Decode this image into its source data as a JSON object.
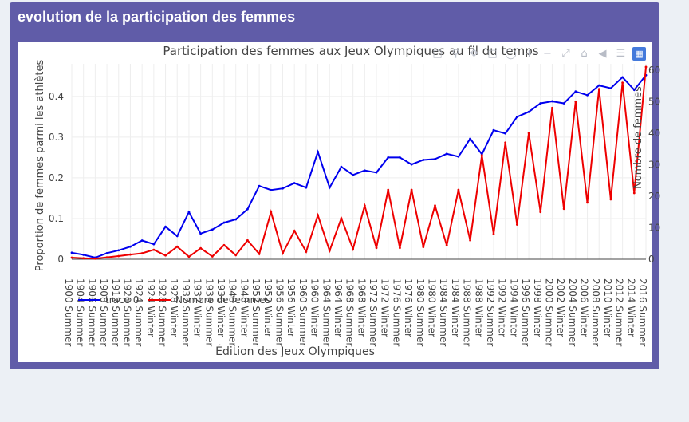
{
  "box": {
    "title": "evolution de la participation des femmes"
  },
  "modebar": {
    "icons": [
      "camera-icon",
      "zoom-icon",
      "pan-icon",
      "box-select-icon",
      "lasso-icon",
      "zoom-in-icon",
      "zoom-out-icon",
      "autoscale-icon",
      "reset-axes-icon",
      "hover-closest-icon",
      "hover-compare-icon",
      "plotly-logo-icon"
    ]
  },
  "chart_data": {
    "type": "line",
    "title": "Participation des femmes aux Jeux Olympiques au fil du temps",
    "xlabel": "Édition des Jeux Olympiques",
    "ylabel": "Proportion de femmes parmi les athlètes",
    "y2label": "Nombre de femmes",
    "legend_position": "bottom-left",
    "categories": [
      "1900 Summer",
      "1904 Summer",
      "1906 Summer",
      "1908 Summer",
      "1912 Summer",
      "1920 Summer",
      "1924 Summer",
      "1924 Winter",
      "1928 Summer",
      "1928 Winter",
      "1932 Summer",
      "1932 Winter",
      "1936 Summer",
      "1936 Winter",
      "1948 Summer",
      "1948 Winter",
      "1952 Summer",
      "1952 Winter",
      "1956 Summer",
      "1956 Winter",
      "1960 Summer",
      "1960 Winter",
      "1964 Summer",
      "1964 Winter",
      "1968 Summer",
      "1968 Winter",
      "1972 Summer",
      "1972 Winter",
      "1976 Summer",
      "1976 Winter",
      "1980 Summer",
      "1980 Winter",
      "1984 Summer",
      "1984 Winter",
      "1988 Summer",
      "1988 Winter",
      "1992 Summer",
      "1992 Winter",
      "1994 Winter",
      "1996 Summer",
      "1998 Winter",
      "2000 Summer",
      "2002 Winter",
      "2004 Summer",
      "2006 Winter",
      "2008 Summer",
      "2010 Winter",
      "2012 Summer",
      "2014 Winter",
      "2016 Summer"
    ],
    "y_ticks": [
      "0",
      "0.1",
      "0.2",
      "0.3",
      "0.4"
    ],
    "ylim": [
      0,
      0.48
    ],
    "y2_ticks": [
      "0",
      "10",
      "20",
      "30",
      "40",
      "50",
      "60"
    ],
    "y2lim": [
      0,
      62
    ],
    "series": [
      {
        "name": "trace 0",
        "axis": "y",
        "color": "#0000ee",
        "values": [
          0.016,
          0.011,
          0.004,
          0.015,
          0.022,
          0.031,
          0.046,
          0.037,
          0.08,
          0.057,
          0.116,
          0.063,
          0.073,
          0.09,
          0.098,
          0.123,
          0.18,
          0.17,
          0.174,
          0.187,
          0.176,
          0.264,
          0.176,
          0.227,
          0.207,
          0.218,
          0.213,
          0.25,
          0.25,
          0.233,
          0.244,
          0.246,
          0.259,
          0.252,
          0.296,
          0.258,
          0.317,
          0.309,
          0.35,
          0.362,
          0.383,
          0.388,
          0.383,
          0.412,
          0.403,
          0.427,
          0.42,
          0.447,
          0.416,
          0.452
        ]
      },
      {
        "name": "Nombre de femmes",
        "axis": "y2",
        "color": "#ee0000",
        "values": [
          0.5,
          0.3,
          0.2,
          0.6,
          1,
          1.5,
          1.9,
          3,
          1.2,
          4,
          0.8,
          3.5,
          0.9,
          4.5,
          1.3,
          6,
          1.7,
          15,
          1.9,
          9,
          2.4,
          14,
          2.7,
          13,
          3.3,
          17,
          3.6,
          22,
          3.6,
          22,
          3.9,
          17,
          4.4,
          22,
          6,
          33,
          8,
          37,
          11,
          40,
          15,
          48,
          16,
          50,
          18,
          54,
          19,
          56,
          21,
          61
        ]
      }
    ]
  }
}
